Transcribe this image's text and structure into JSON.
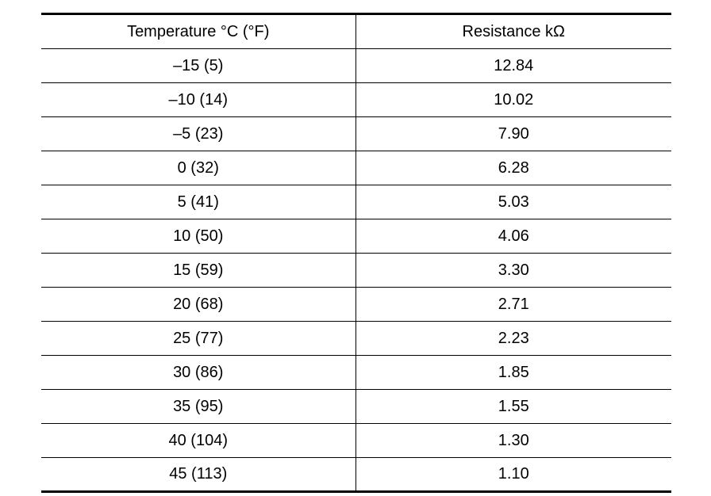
{
  "table": {
    "headers": {
      "temperature": "Temperature °C (°F)",
      "resistance": "Resistance kΩ"
    },
    "rows": [
      {
        "temperature": "–15 (5)",
        "resistance": "12.84"
      },
      {
        "temperature": "–10 (14)",
        "resistance": "10.02"
      },
      {
        "temperature": "–5 (23)",
        "resistance": "7.90"
      },
      {
        "temperature": "0 (32)",
        "resistance": "6.28"
      },
      {
        "temperature": "5 (41)",
        "resistance": "5.03"
      },
      {
        "temperature": "10 (50)",
        "resistance": "4.06"
      },
      {
        "temperature": "15 (59)",
        "resistance": "3.30"
      },
      {
        "temperature": "20 (68)",
        "resistance": "2.71"
      },
      {
        "temperature": "25 (77)",
        "resistance": "2.23"
      },
      {
        "temperature": "30 (86)",
        "resistance": "1.85"
      },
      {
        "temperature": "35 (95)",
        "resistance": "1.55"
      },
      {
        "temperature": "40 (104)",
        "resistance": "1.30"
      },
      {
        "temperature": "45 (113)",
        "resistance": "1.10"
      }
    ]
  }
}
